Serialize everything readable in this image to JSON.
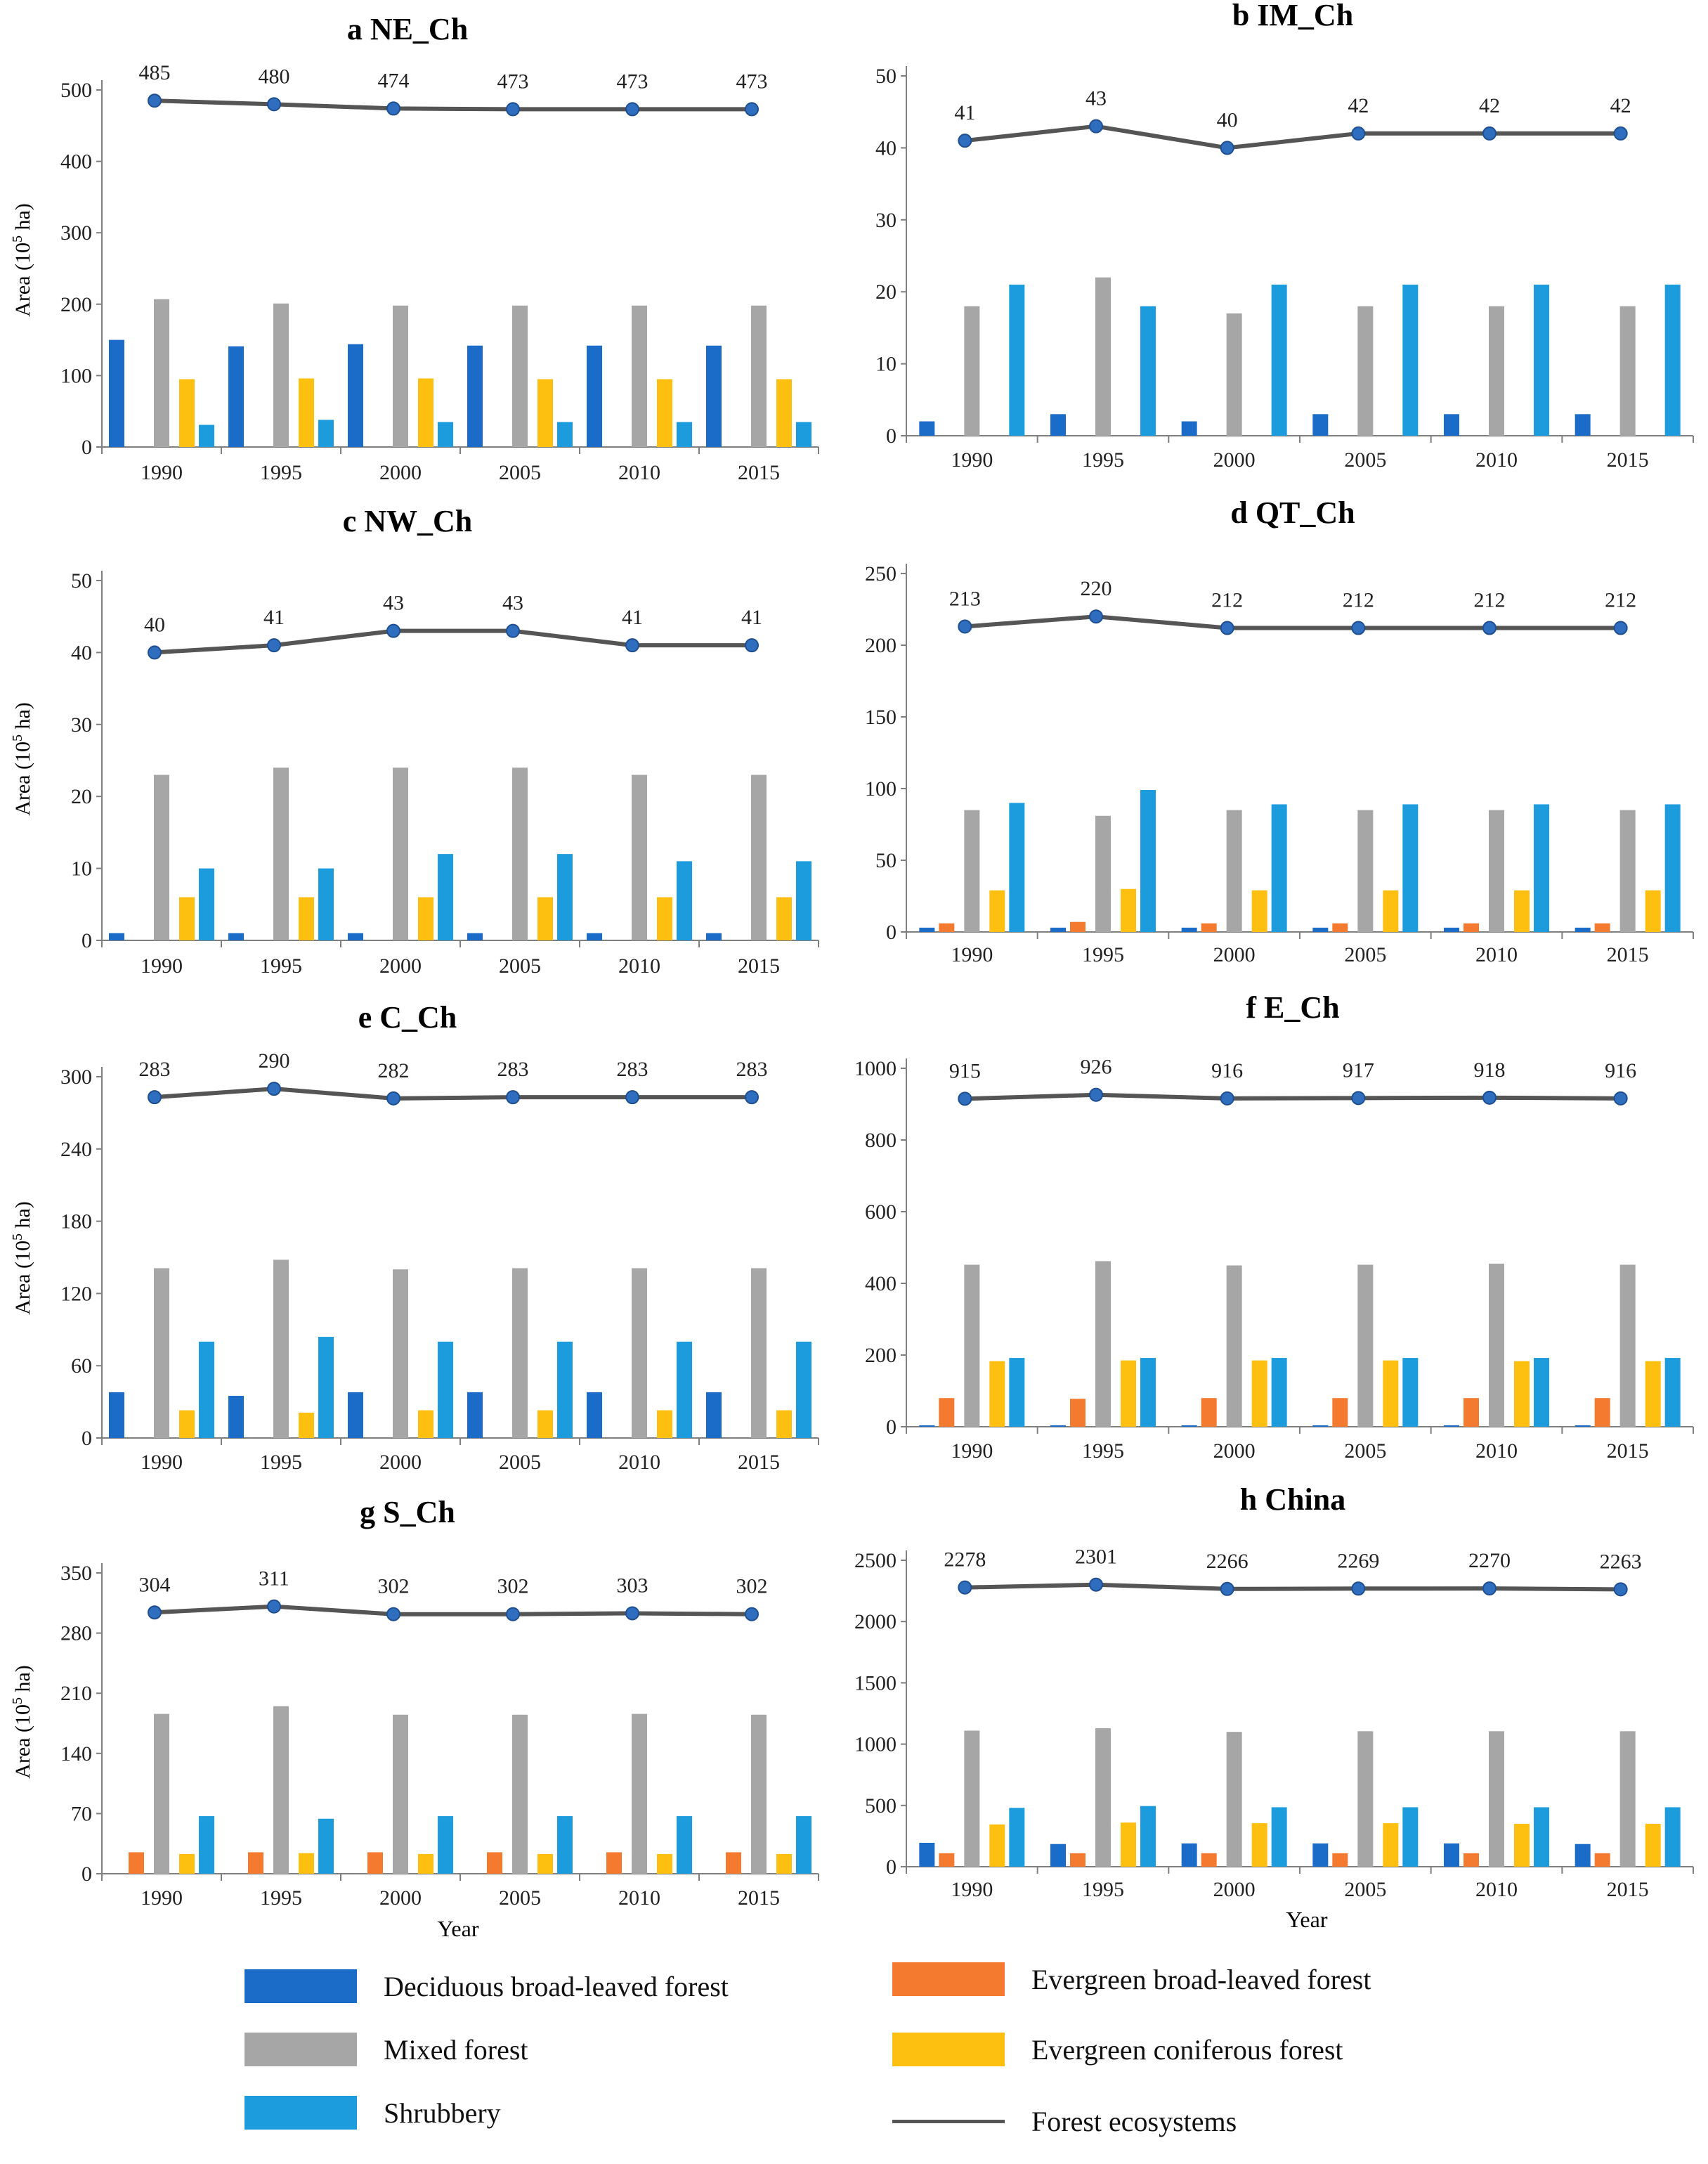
{
  "colors": {
    "deciduous_broadleaved": "#1a6cc8",
    "evergreen_broadleaved": "#f47a30",
    "mixed": "#a6a6a6",
    "evergreen_coniferous": "#fdc010",
    "shrubbery": "#1c9cdc",
    "ecosystem_line": "#555555",
    "ecosystem_marker": "#2f6ebf"
  },
  "legend": {
    "deciduous_broadleaved": "Deciduous broad-leaved forest",
    "evergreen_broadleaved": "Evergreen broad-leaved forest",
    "mixed": "Mixed forest",
    "evergreen_coniferous": "Evergreen coniferous forest",
    "shrubbery": "Shrubbery",
    "forest_ecosystems": "Forest ecosystems"
  },
  "labels": {
    "ylabel_text": "Area (10",
    "ylabel_sup": "5",
    "ylabel_unit": " ha)",
    "xlabel": "Year"
  },
  "chart_data": [
    {
      "type": "bar+line",
      "title": "a NE_Ch",
      "ylabel": "Area (10^5 ha)",
      "xlabel": "",
      "categories": [
        "1990",
        "1995",
        "2000",
        "2005",
        "2010",
        "2015"
      ],
      "ylim": [
        0,
        500
      ],
      "yticks": [
        0,
        100,
        200,
        300,
        400,
        500
      ],
      "series": [
        {
          "name": "Deciduous broad-leaved forest",
          "key": "deciduous_broadleaved",
          "values": [
            150,
            141,
            144,
            142,
            142,
            142
          ]
        },
        {
          "name": "Evergreen broad-leaved forest",
          "key": "evergreen_broadleaved",
          "values": [
            0,
            0,
            0,
            0,
            0,
            0
          ]
        },
        {
          "name": "Mixed forest",
          "key": "mixed",
          "values": [
            207,
            201,
            198,
            198,
            198,
            198
          ]
        },
        {
          "name": "Evergreen coniferous forest",
          "key": "evergreen_coniferous",
          "values": [
            95,
            96,
            96,
            95,
            95,
            95
          ]
        },
        {
          "name": "Shrubbery",
          "key": "shrubbery",
          "values": [
            31,
            38,
            35,
            35,
            35,
            35
          ]
        }
      ],
      "line": {
        "name": "Forest ecosystems",
        "values": [
          485,
          480,
          474,
          473,
          473,
          473
        ]
      }
    },
    {
      "type": "bar+line",
      "title": "b IM_Ch",
      "ylabel": "",
      "xlabel": "",
      "categories": [
        "1990",
        "1995",
        "2000",
        "2005",
        "2010",
        "2015"
      ],
      "ylim": [
        0,
        50
      ],
      "yticks": [
        0,
        10,
        20,
        30,
        40,
        50
      ],
      "series": [
        {
          "name": "Deciduous broad-leaved forest",
          "key": "deciduous_broadleaved",
          "values": [
            2,
            3,
            2,
            3,
            3,
            3
          ]
        },
        {
          "name": "Evergreen broad-leaved forest",
          "key": "evergreen_broadleaved",
          "values": [
            0,
            0,
            0,
            0,
            0,
            0
          ]
        },
        {
          "name": "Mixed forest",
          "key": "mixed",
          "values": [
            18,
            22,
            17,
            18,
            18,
            18
          ]
        },
        {
          "name": "Evergreen coniferous forest",
          "key": "evergreen_coniferous",
          "values": [
            0,
            0,
            0,
            0,
            0,
            0
          ]
        },
        {
          "name": "Shrubbery",
          "key": "shrubbery",
          "values": [
            21,
            18,
            21,
            21,
            21,
            21
          ]
        }
      ],
      "line": {
        "name": "Forest ecosystems",
        "values": [
          41,
          43,
          40,
          42,
          42,
          42
        ]
      }
    },
    {
      "type": "bar+line",
      "title": "c NW_Ch",
      "ylabel": "Area (10^5 ha)",
      "xlabel": "",
      "categories": [
        "1990",
        "1995",
        "2000",
        "2005",
        "2010",
        "2015"
      ],
      "ylim": [
        0,
        50
      ],
      "yticks": [
        0,
        10,
        20,
        30,
        40,
        50
      ],
      "series": [
        {
          "name": "Deciduous broad-leaved forest",
          "key": "deciduous_broadleaved",
          "values": [
            1,
            1,
            1,
            1,
            1,
            1
          ]
        },
        {
          "name": "Evergreen broad-leaved forest",
          "key": "evergreen_broadleaved",
          "values": [
            0,
            0,
            0,
            0,
            0,
            0
          ]
        },
        {
          "name": "Mixed forest",
          "key": "mixed",
          "values": [
            23,
            24,
            24,
            24,
            23,
            23
          ]
        },
        {
          "name": "Evergreen coniferous forest",
          "key": "evergreen_coniferous",
          "values": [
            6,
            6,
            6,
            6,
            6,
            6
          ]
        },
        {
          "name": "Shrubbery",
          "key": "shrubbery",
          "values": [
            10,
            10,
            12,
            12,
            11,
            11
          ]
        }
      ],
      "line": {
        "name": "Forest ecosystems",
        "values": [
          40,
          41,
          43,
          43,
          41,
          41
        ]
      }
    },
    {
      "type": "bar+line",
      "title": "d QT_Ch",
      "ylabel": "",
      "xlabel": "",
      "categories": [
        "1990",
        "1995",
        "2000",
        "2005",
        "2010",
        "2015"
      ],
      "ylim": [
        0,
        250
      ],
      "yticks": [
        0,
        50,
        100,
        150,
        200,
        250
      ],
      "series": [
        {
          "name": "Deciduous broad-leaved forest",
          "key": "deciduous_broadleaved",
          "values": [
            3,
            3,
            3,
            3,
            3,
            3
          ]
        },
        {
          "name": "Evergreen broad-leaved forest",
          "key": "evergreen_broadleaved",
          "values": [
            6,
            7,
            6,
            6,
            6,
            6
          ]
        },
        {
          "name": "Mixed forest",
          "key": "mixed",
          "values": [
            85,
            81,
            85,
            85,
            85,
            85
          ]
        },
        {
          "name": "Evergreen coniferous forest",
          "key": "evergreen_coniferous",
          "values": [
            29,
            30,
            29,
            29,
            29,
            29
          ]
        },
        {
          "name": "Shrubbery",
          "key": "shrubbery",
          "values": [
            90,
            99,
            89,
            89,
            89,
            89
          ]
        }
      ],
      "line": {
        "name": "Forest ecosystems",
        "values": [
          213,
          220,
          212,
          212,
          212,
          212
        ]
      }
    },
    {
      "type": "bar+line",
      "title": "e C_Ch",
      "ylabel": "Area (10^5 ha)",
      "xlabel": "",
      "categories": [
        "1990",
        "1995",
        "2000",
        "2005",
        "2010",
        "2015"
      ],
      "ylim": [
        0,
        300
      ],
      "yticks": [
        0,
        60,
        120,
        180,
        240,
        300
      ],
      "series": [
        {
          "name": "Deciduous broad-leaved forest",
          "key": "deciduous_broadleaved",
          "values": [
            38,
            35,
            38,
            38,
            38,
            38
          ]
        },
        {
          "name": "Evergreen broad-leaved forest",
          "key": "evergreen_broadleaved",
          "values": [
            0,
            0,
            0,
            0,
            0,
            0
          ]
        },
        {
          "name": "Mixed forest",
          "key": "mixed",
          "values": [
            141,
            148,
            140,
            141,
            141,
            141
          ]
        },
        {
          "name": "Evergreen coniferous forest",
          "key": "evergreen_coniferous",
          "values": [
            23,
            21,
            23,
            23,
            23,
            23
          ]
        },
        {
          "name": "Shrubbery",
          "key": "shrubbery",
          "values": [
            80,
            84,
            80,
            80,
            80,
            80
          ]
        }
      ],
      "line": {
        "name": "Forest ecosystems",
        "values": [
          283,
          290,
          282,
          283,
          283,
          283
        ]
      }
    },
    {
      "type": "bar+line",
      "title": "f E_Ch",
      "ylabel": "",
      "xlabel": "",
      "categories": [
        "1990",
        "1995",
        "2000",
        "2005",
        "2010",
        "2015"
      ],
      "ylim": [
        0,
        1000
      ],
      "yticks": [
        0,
        200,
        400,
        600,
        800,
        1000
      ],
      "series": [
        {
          "name": "Deciduous broad-leaved forest",
          "key": "deciduous_broadleaved",
          "values": [
            4,
            4,
            4,
            4,
            4,
            4
          ]
        },
        {
          "name": "Evergreen broad-leaved forest",
          "key": "evergreen_broadleaved",
          "values": [
            80,
            78,
            80,
            80,
            80,
            80
          ]
        },
        {
          "name": "Mixed forest",
          "key": "mixed",
          "values": [
            452,
            462,
            450,
            452,
            455,
            452
          ]
        },
        {
          "name": "Evergreen coniferous forest",
          "key": "evergreen_coniferous",
          "values": [
            183,
            185,
            185,
            185,
            183,
            183
          ]
        },
        {
          "name": "Shrubbery",
          "key": "shrubbery",
          "values": [
            192,
            192,
            192,
            192,
            192,
            192
          ]
        }
      ],
      "line": {
        "name": "Forest ecosystems",
        "values": [
          915,
          926,
          916,
          917,
          918,
          916
        ]
      }
    },
    {
      "type": "bar+line",
      "title": "g S_Ch",
      "ylabel": "Area (10^5 ha)",
      "xlabel": "Year",
      "categories": [
        "1990",
        "1995",
        "2000",
        "2005",
        "2010",
        "2015"
      ],
      "ylim": [
        0,
        350
      ],
      "yticks": [
        0,
        70,
        140,
        210,
        280,
        350
      ],
      "series": [
        {
          "name": "Deciduous broad-leaved forest",
          "key": "deciduous_broadleaved",
          "values": [
            0,
            0,
            0,
            0,
            0,
            0
          ]
        },
        {
          "name": "Evergreen broad-leaved forest",
          "key": "evergreen_broadleaved",
          "values": [
            25,
            25,
            25,
            25,
            25,
            25
          ]
        },
        {
          "name": "Mixed forest",
          "key": "mixed",
          "values": [
            186,
            195,
            185,
            185,
            186,
            185
          ]
        },
        {
          "name": "Evergreen coniferous forest",
          "key": "evergreen_coniferous",
          "values": [
            23,
            24,
            23,
            23,
            23,
            23
          ]
        },
        {
          "name": "Shrubbery",
          "key": "shrubbery",
          "values": [
            67,
            64,
            67,
            67,
            67,
            67
          ]
        }
      ],
      "line": {
        "name": "Forest ecosystems",
        "values": [
          304,
          311,
          302,
          302,
          303,
          302
        ]
      }
    },
    {
      "type": "bar+line",
      "title": "h China",
      "ylabel": "",
      "xlabel": "Year",
      "categories": [
        "1990",
        "1995",
        "2000",
        "2005",
        "2010",
        "2015"
      ],
      "ylim": [
        0,
        2500
      ],
      "yticks": [
        0,
        500,
        1000,
        1500,
        2000,
        2500
      ],
      "series": [
        {
          "name": "Deciduous broad-leaved forest",
          "key": "deciduous_broadleaved",
          "values": [
            195,
            185,
            190,
            190,
            190,
            185
          ]
        },
        {
          "name": "Evergreen broad-leaved forest",
          "key": "evergreen_broadleaved",
          "values": [
            110,
            110,
            110,
            110,
            110,
            110
          ]
        },
        {
          "name": "Mixed forest",
          "key": "mixed",
          "values": [
            1110,
            1130,
            1100,
            1105,
            1105,
            1105
          ]
        },
        {
          "name": "Evergreen coniferous forest",
          "key": "evergreen_coniferous",
          "values": [
            345,
            360,
            355,
            355,
            350,
            350
          ]
        },
        {
          "name": "Shrubbery",
          "key": "shrubbery",
          "values": [
            480,
            495,
            485,
            485,
            485,
            485
          ]
        }
      ],
      "line": {
        "name": "Forest ecosystems",
        "values": [
          2278,
          2301,
          2266,
          2269,
          2270,
          2263
        ]
      }
    }
  ]
}
